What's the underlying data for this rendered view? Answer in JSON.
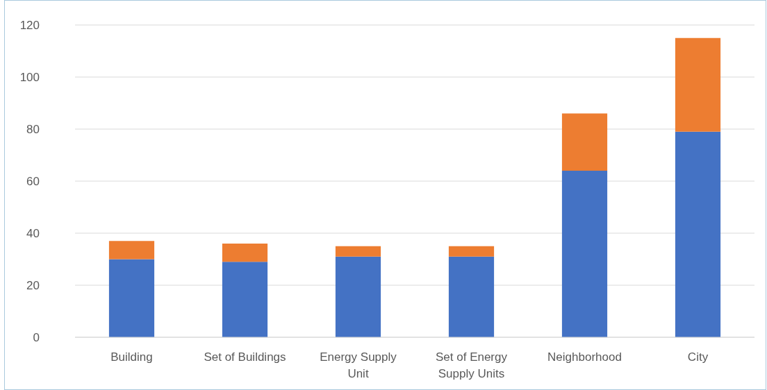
{
  "chart_data": {
    "type": "bar",
    "stacked": true,
    "categories": [
      "Building",
      "Set of Buildings",
      "Energy Supply Unit",
      "Set of Energy Supply Units",
      "Neighborhood",
      "City"
    ],
    "series": [
      {
        "color": "#4472c4",
        "values": [
          30,
          29,
          31,
          31,
          64,
          79
        ]
      },
      {
        "color": "#ed7d31",
        "values": [
          7,
          7,
          4,
          4,
          22,
          36
        ]
      }
    ],
    "ylim": [
      0,
      120
    ],
    "yticks": [
      0,
      20,
      40,
      60,
      80,
      100,
      120
    ],
    "grid": "y"
  }
}
